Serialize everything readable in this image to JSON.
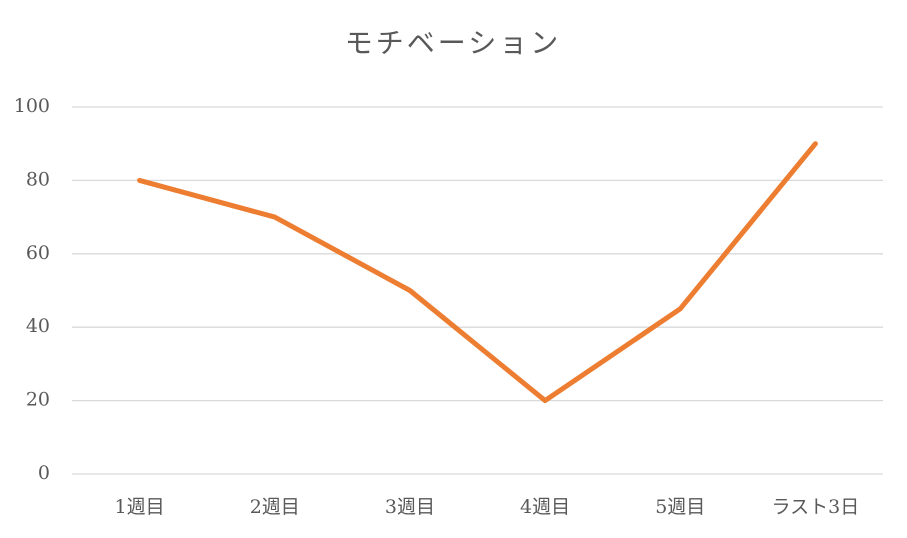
{
  "chart_data": {
    "type": "line",
    "title": "モチベーション",
    "categories": [
      "1週目",
      "2週目",
      "3週目",
      "4週目",
      "5週目",
      "ラスト3日"
    ],
    "values": [
      80,
      70,
      50,
      20,
      45,
      90
    ],
    "color": "#ed7d31",
    "ylim": [
      0,
      100
    ],
    "yticks": [
      0,
      20,
      40,
      60,
      80,
      100
    ],
    "grid": true
  }
}
